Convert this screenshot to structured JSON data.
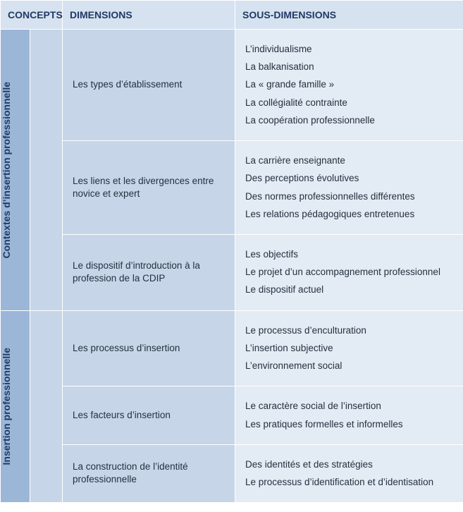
{
  "headers": {
    "concepts": "CONCEPTS",
    "dimensions": "DIMENSIONS",
    "sous_dimensions": "SOUS-DIMENSIONS"
  },
  "colors": {
    "header_bg": "#d6e2f0",
    "header_text": "#1f3a63",
    "band_bg": "#9cb6d8",
    "spacer_bg": "#c6d5e8",
    "dim_bg": "#c6d5e8",
    "sub_bg": "#e3ebf4",
    "border": "#ffffff",
    "body_text": "#24313f"
  },
  "concepts": [
    {
      "label": "Contextes d’insertion professionnelle",
      "rows": [
        {
          "dimension": "Les types d’établissement",
          "sous": [
            "L’individualisme",
            "La balkanisation",
            "La « grande famille »",
            "La collégialité contrainte",
            "La coopération professionnelle"
          ]
        },
        {
          "dimension": "Les liens et les divergences entre novice et expert",
          "sous": [
            "La carrière enseignante",
            "Des perceptions évolutives",
            "Des normes professionnelles différentes",
            "Les relations pédagogiques entretenues"
          ]
        },
        {
          "dimension": "Le dispositif d’introduction à la profession de la CDIP",
          "sous": [
            "Les objectifs",
            "Le projet d’un accompagnement professionnel",
            "Le dispositif actuel"
          ]
        }
      ]
    },
    {
      "label": "Insertion professionnelle",
      "rows": [
        {
          "dimension": "Les processus d’insertion",
          "sous": [
            "Le processus d’enculturation",
            "L’insertion subjective",
            "L’environnement social"
          ]
        },
        {
          "dimension": "Les facteurs d’insertion",
          "sous": [
            "Le caractère social de l’insertion",
            "Les pratiques formelles et informelles"
          ]
        },
        {
          "dimension": "La construction de l’identité professionnelle",
          "sous": [
            "Des identités et des stratégies",
            "Le processus d’identification et d’identisation"
          ]
        }
      ]
    }
  ]
}
